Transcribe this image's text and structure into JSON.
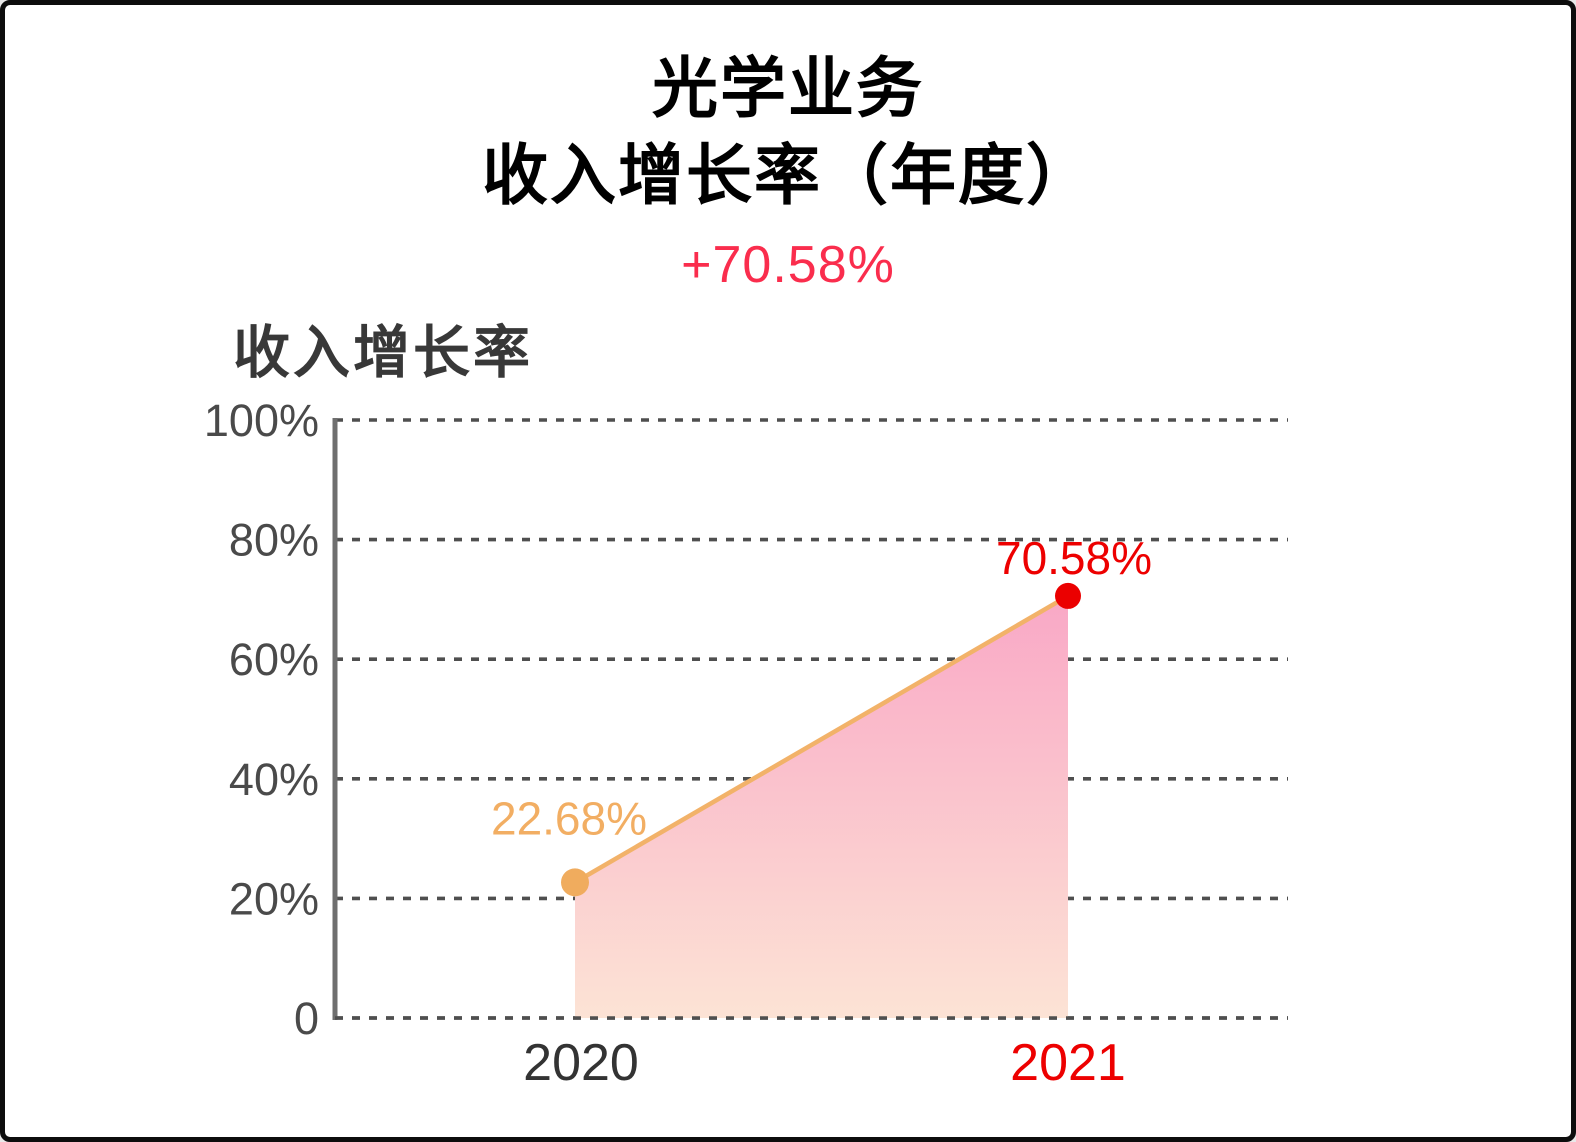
{
  "window": {
    "background": "#ffffff",
    "border_color": "#0d0d0d"
  },
  "header": {
    "title_line1": "光学业务",
    "title_line2": "收入增长率（年度）",
    "change_label": "+70.58%",
    "title_color": "#000000",
    "change_color": "#fa2d4d"
  },
  "chart_data": {
    "type": "area",
    "title": "收入增长率",
    "categories": [
      "2020",
      "2021"
    ],
    "values": [
      22.68,
      70.58
    ],
    "point_labels": [
      "22.68%",
      "70.58%"
    ],
    "xlabel": "",
    "ylabel": "",
    "ylim": [
      0,
      100
    ],
    "yticks": [
      0,
      20,
      40,
      60,
      80,
      100
    ],
    "ytick_labels": [
      "0",
      "20%",
      "40%",
      "60%",
      "80%",
      "100%"
    ],
    "grid": "horizontal-dashed",
    "legend_position": "none",
    "colors": {
      "point_fill": [
        "#f0ac5e",
        "#eb0000"
      ],
      "point_label": [
        "#f2ae63",
        "#ed0000"
      ],
      "xtick_label": [
        "#333333",
        "#ed0000"
      ],
      "line": "#f2b269",
      "area_gradient_top": "#f9a8c6",
      "area_gradient_bottom": "#fce3d5",
      "grid_line": "#4f4f4f",
      "axis_line": "#6f6f6f",
      "ytick_label": "#4a4a4a"
    }
  }
}
